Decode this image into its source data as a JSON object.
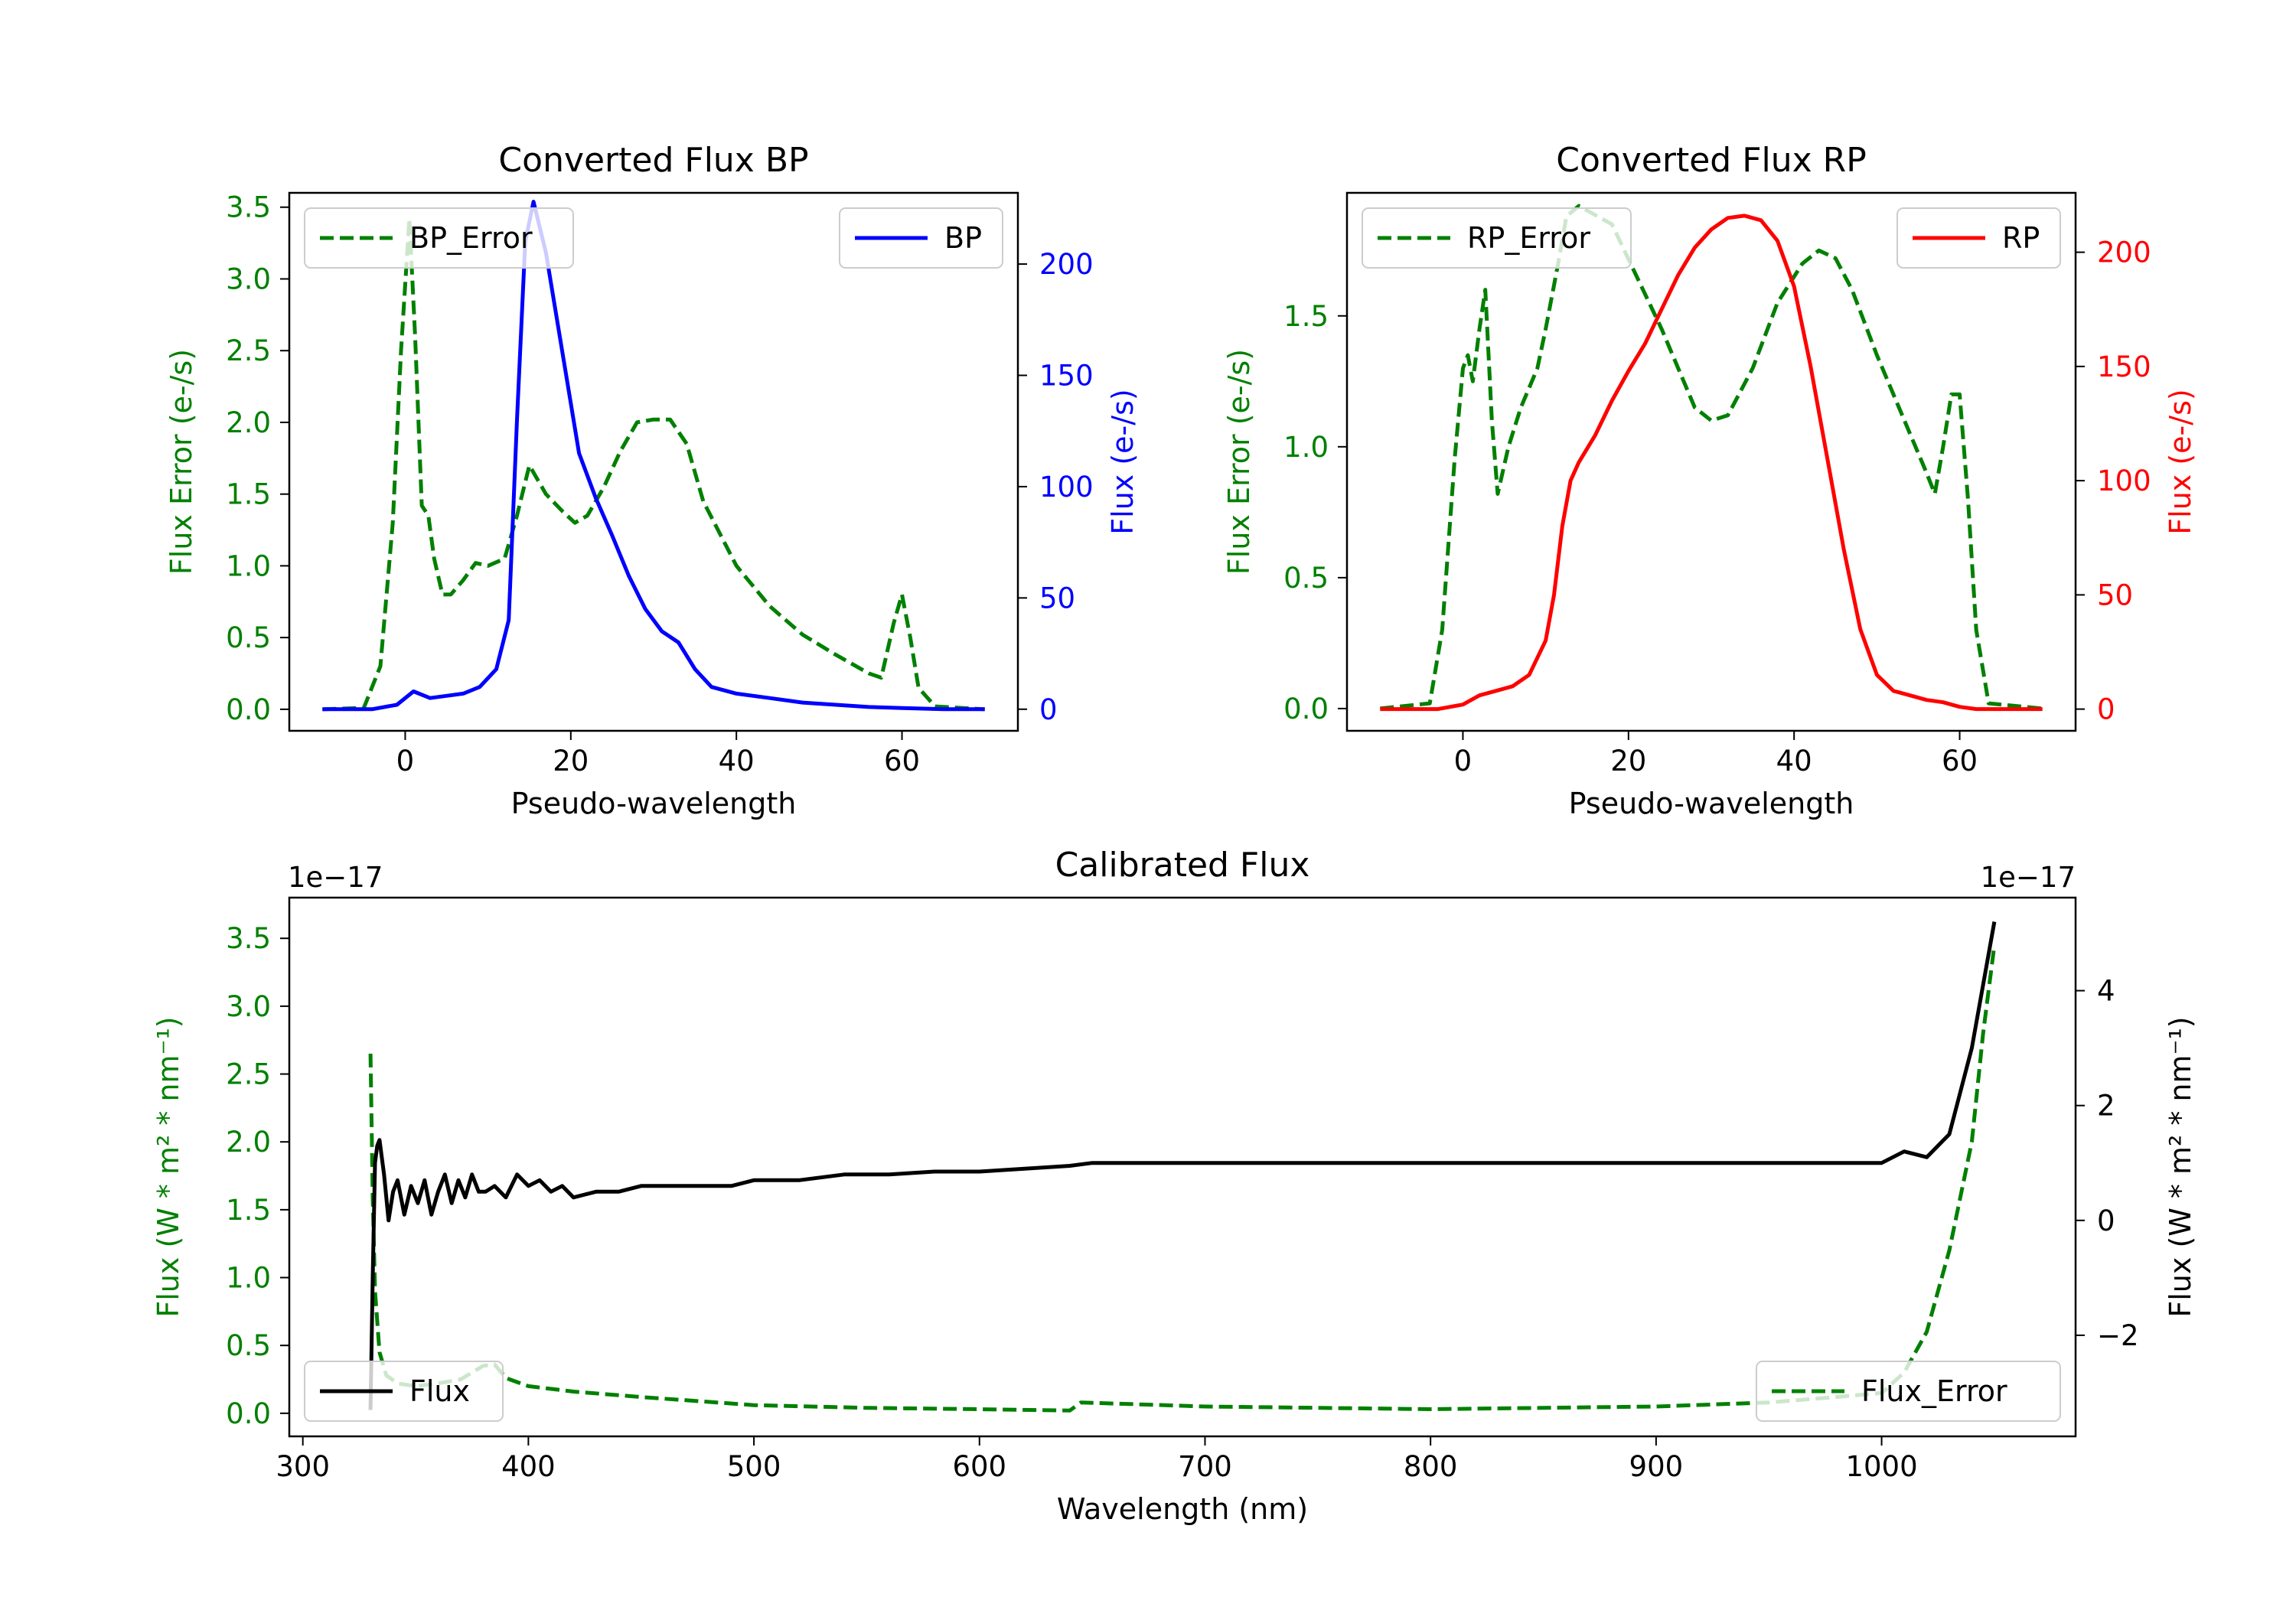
{
  "chart_data": [
    {
      "type": "line",
      "title": "Converted Flux BP",
      "xlabel": "Pseudo-wavelength",
      "ylabel": "Flux Error (e-/s)",
      "ylabel_right": "Flux (e-/s)",
      "xlim": [
        -14,
        74
      ],
      "ylim": [
        -0.15,
        3.6
      ],
      "ylim_right": [
        -9.7,
        232
      ],
      "xticks": [
        0,
        20,
        40,
        60
      ],
      "yticks": [
        0.0,
        0.5,
        1.0,
        1.5,
        2.0,
        2.5,
        3.0,
        3.5
      ],
      "yticks_right": [
        0,
        50,
        100,
        150,
        200
      ],
      "series": [
        {
          "name": "BP_Error",
          "axis": "left",
          "style": "dashed",
          "color": "#008000",
          "x": [
            -10,
            -5,
            -3,
            -1.5,
            -0.5,
            0.5,
            1.2,
            2,
            2.8,
            3.5,
            4.5,
            5.5,
            7,
            8.5,
            10,
            12,
            13.5,
            15,
            17,
            19,
            20.5,
            22,
            24,
            26,
            28,
            30,
            32,
            34,
            36,
            40,
            44,
            48,
            52,
            56,
            57.5,
            59,
            60,
            61,
            62,
            64,
            70
          ],
          "y": [
            0,
            0.01,
            0.3,
            1.3,
            2.5,
            3.42,
            2.6,
            1.42,
            1.35,
            1.05,
            0.8,
            0.8,
            0.9,
            1.02,
            1.0,
            1.05,
            1.35,
            1.7,
            1.5,
            1.38,
            1.3,
            1.35,
            1.55,
            1.8,
            2.0,
            2.02,
            2.02,
            1.85,
            1.45,
            1.0,
            0.72,
            0.52,
            0.38,
            0.25,
            0.22,
            0.6,
            0.8,
            0.5,
            0.15,
            0.02,
            0
          ]
        },
        {
          "name": "BP",
          "axis": "right",
          "style": "solid",
          "color": "#0000ff",
          "x": [
            -10,
            -4,
            -1,
            1,
            3,
            5,
            7,
            9,
            11,
            12.5,
            13.5,
            14.5,
            15.5,
            17,
            19,
            21,
            23,
            25,
            27,
            29,
            31,
            33,
            35,
            37,
            40,
            44,
            48,
            52,
            56,
            60,
            65,
            70
          ],
          "y": [
            0,
            0,
            2,
            8,
            5,
            6,
            7,
            10,
            18,
            40,
            130,
            210,
            228,
            205,
            160,
            115,
            95,
            78,
            60,
            45,
            35,
            30,
            18,
            10,
            7,
            5,
            3,
            2,
            1,
            0.5,
            0,
            0
          ]
        }
      ],
      "legend": [
        {
          "label": "BP_Error",
          "position": "upper-left"
        },
        {
          "label": "BP",
          "position": "upper-right"
        }
      ]
    },
    {
      "type": "line",
      "title": "Converted Flux RP",
      "xlabel": "Pseudo-wavelength",
      "ylabel": "Flux Error (e-/s)",
      "ylabel_right": "Flux (e-/s)",
      "xlim": [
        -14,
        74
      ],
      "ylim": [
        -0.085,
        1.97
      ],
      "ylim_right": [
        -9.5,
        226
      ],
      "xticks": [
        0,
        20,
        40,
        60
      ],
      "yticks": [
        0.0,
        0.5,
        1.0,
        1.5
      ],
      "yticks_right": [
        0,
        50,
        100,
        150,
        200
      ],
      "series": [
        {
          "name": "RP_Error",
          "axis": "left",
          "style": "dashed",
          "color": "#008000",
          "x": [
            -10,
            -4,
            -2.5,
            -1,
            0,
            0.6,
            1.2,
            2,
            2.7,
            3.5,
            4.2,
            5.5,
            7,
            9,
            10,
            11.5,
            12.5,
            14,
            18,
            24,
            28,
            30,
            32,
            35,
            38,
            41,
            43,
            45,
            47,
            50,
            52,
            54,
            56,
            57,
            58,
            59,
            60,
            61,
            62,
            63.5,
            70
          ],
          "y": [
            0,
            0.02,
            0.3,
            0.95,
            1.3,
            1.35,
            1.25,
            1.45,
            1.6,
            1.1,
            0.82,
            1.0,
            1.15,
            1.3,
            1.45,
            1.7,
            1.88,
            1.92,
            1.85,
            1.45,
            1.15,
            1.1,
            1.12,
            1.3,
            1.55,
            1.7,
            1.75,
            1.72,
            1.6,
            1.35,
            1.2,
            1.05,
            0.9,
            0.82,
            1.0,
            1.2,
            1.2,
            0.8,
            0.3,
            0.02,
            0
          ]
        },
        {
          "name": "RP",
          "axis": "right",
          "style": "solid",
          "color": "#ff0000",
          "x": [
            -10,
            -3,
            0,
            2,
            4,
            6,
            8,
            10,
            11,
            12,
            13,
            14,
            16,
            18,
            20,
            22,
            24,
            26,
            28,
            30,
            32,
            34,
            36,
            38,
            40,
            42,
            44,
            46,
            48,
            50,
            52,
            54,
            56,
            58,
            60,
            62,
            64,
            70
          ],
          "y": [
            0,
            0,
            2,
            6,
            8,
            10,
            15,
            30,
            50,
            80,
            100,
            108,
            120,
            135,
            148,
            160,
            175,
            190,
            202,
            210,
            215,
            216,
            214,
            205,
            185,
            150,
            110,
            70,
            35,
            15,
            8,
            6,
            4,
            3,
            1,
            0,
            0,
            0
          ]
        }
      ],
      "legend": [
        {
          "label": "RP_Error",
          "position": "upper-left"
        },
        {
          "label": "RP",
          "position": "upper-right"
        }
      ]
    },
    {
      "type": "line",
      "title": "Calibrated Flux",
      "xlabel": "Wavelength (nm)",
      "ylabel": "Flux (W * m² * nm⁻¹)",
      "ylabel_right": "Flux (W * m² * nm⁻¹)",
      "offset_text_left": "1e−17",
      "offset_text_right": "1e−17",
      "xlim": [
        294,
        1086
      ],
      "ylim": [
        -0.17,
        3.8
      ],
      "ylim_right": [
        -3.76,
        5.62
      ],
      "xticks": [
        300,
        400,
        500,
        600,
        700,
        800,
        900,
        1000
      ],
      "yticks": [
        0.0,
        0.5,
        1.0,
        1.5,
        2.0,
        2.5,
        3.0,
        3.5
      ],
      "yticks_right": [
        -2,
        0,
        2,
        4
      ],
      "ytick_labels_right": [
        "−2",
        "0",
        "2",
        "4"
      ],
      "series": [
        {
          "name": "Flux_Error",
          "axis": "left",
          "style": "dashed",
          "color": "#008000",
          "x": [
            330,
            331,
            332,
            334,
            337,
            342,
            350,
            360,
            370,
            380,
            385,
            390,
            400,
            420,
            450,
            500,
            550,
            600,
            640,
            645,
            700,
            800,
            900,
            950,
            980,
            1000,
            1010,
            1020,
            1030,
            1040,
            1045,
            1050
          ],
          "y": [
            2.65,
            1.6,
            0.9,
            0.45,
            0.28,
            0.22,
            0.2,
            0.22,
            0.25,
            0.35,
            0.36,
            0.26,
            0.2,
            0.16,
            0.12,
            0.06,
            0.04,
            0.03,
            0.02,
            0.08,
            0.05,
            0.03,
            0.05,
            0.08,
            0.12,
            0.15,
            0.3,
            0.6,
            1.2,
            2.0,
            2.8,
            3.45
          ]
        },
        {
          "name": "Flux",
          "axis": "right",
          "style": "solid",
          "color": "#000000",
          "x": [
            330,
            331,
            332,
            333,
            334,
            336,
            338,
            340,
            342,
            345,
            348,
            351,
            354,
            357,
            360,
            363,
            366,
            369,
            372,
            375,
            378,
            381,
            385,
            390,
            395,
            400,
            405,
            410,
            415,
            420,
            430,
            440,
            450,
            460,
            470,
            480,
            490,
            500,
            520,
            540,
            560,
            580,
            600,
            620,
            640,
            650,
            660,
            680,
            700,
            750,
            800,
            850,
            900,
            950,
            980,
            1000,
            1010,
            1020,
            1030,
            1040,
            1050
          ],
          "y": [
            -3.3,
            -1.0,
            1.0,
            1.3,
            1.4,
            0.8,
            0.0,
            0.5,
            0.7,
            0.1,
            0.6,
            0.3,
            0.7,
            0.1,
            0.5,
            0.8,
            0.3,
            0.7,
            0.4,
            0.8,
            0.5,
            0.5,
            0.6,
            0.4,
            0.8,
            0.6,
            0.7,
            0.5,
            0.6,
            0.4,
            0.5,
            0.5,
            0.6,
            0.6,
            0.6,
            0.6,
            0.6,
            0.7,
            0.7,
            0.8,
            0.8,
            0.85,
            0.85,
            0.9,
            0.95,
            1.0,
            1.0,
            1.0,
            1.0,
            1.0,
            1.0,
            1.0,
            1.0,
            1.0,
            1.0,
            1.0,
            1.2,
            1.1,
            1.5,
            3.0,
            5.2
          ]
        }
      ],
      "legend": [
        {
          "label": "Flux",
          "position": "lower-left"
        },
        {
          "label": "Flux_Error",
          "position": "lower-right"
        }
      ]
    }
  ]
}
